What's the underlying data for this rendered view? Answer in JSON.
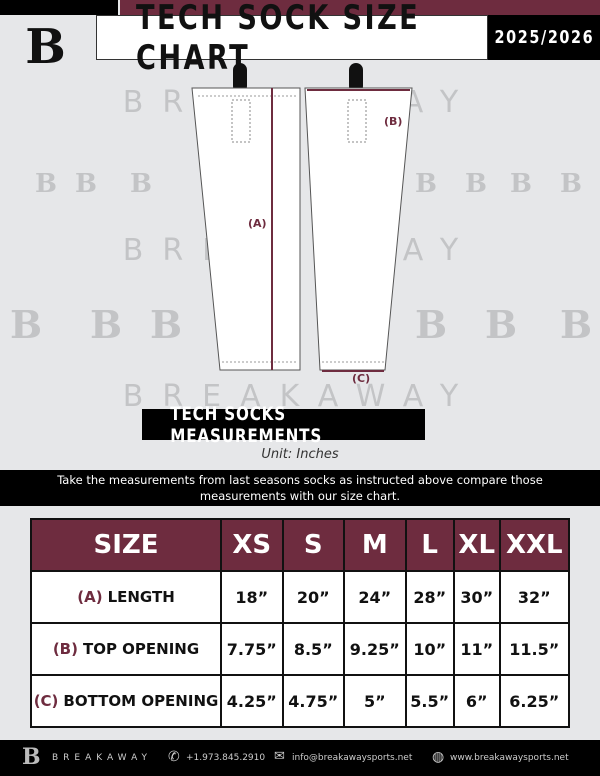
{
  "header": {
    "title": "TECH SOCK SIZE CHART",
    "season": "2025/2026"
  },
  "watermark": {
    "text": "BREAKAWAY",
    "letter": "B"
  },
  "diagram": {
    "a": "(A)",
    "b": "(B)",
    "c": "(C)"
  },
  "section": {
    "title": "TECH SOCKS MEASUREMENTS",
    "unit": "Unit: Inches",
    "instructions": "Take the measurements from last seasons socks as instructed above compare those measurements  with our size chart."
  },
  "table": {
    "headers": [
      "SIZE",
      "XS",
      "S",
      "M",
      "L",
      "XL",
      "XXL"
    ],
    "rows": [
      {
        "letter": "(A)",
        "label": "LENGTH",
        "values": [
          "18”",
          "20”",
          "24”",
          "28”",
          "30”",
          "32”"
        ]
      },
      {
        "letter": "(B)",
        "label": "TOP OPENING",
        "values": [
          "7.75”",
          "8.5”",
          "9.25”",
          "10”",
          "11”",
          "11.5”"
        ]
      },
      {
        "letter": "(C)",
        "label": "BOTTOM OPENING",
        "values": [
          "4.25”",
          "4.75”",
          "5”",
          "5.5”",
          "6”",
          "6.25”"
        ]
      }
    ]
  },
  "footer": {
    "brand": "BREAKAWAY",
    "phone": "+1.973.845.2910",
    "email": "info@breakawaysports.net",
    "website": "www.breakawaysports.net"
  },
  "colors": {
    "maroon": "#6e2c3f",
    "background": "#e6e7e9"
  }
}
